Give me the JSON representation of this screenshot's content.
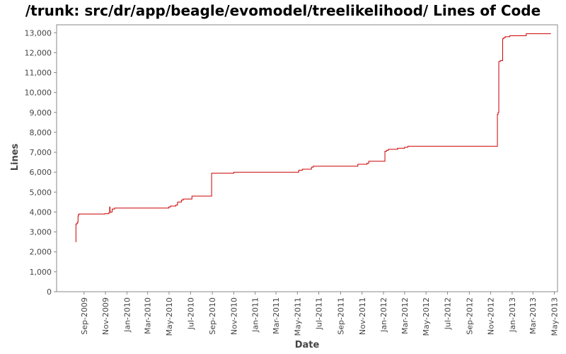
{
  "chart_data": {
    "type": "line",
    "title": "/trunk: src/dr/app/beagle/evomodel/treelikelihood/ Lines of Code",
    "xlabel": "Date",
    "ylabel": "Lines",
    "xlim": [
      "2009-06-15",
      "2013-05-10"
    ],
    "ylim": [
      0,
      13400
    ],
    "x_ticks": [
      "2009-09-01",
      "2009-11-01",
      "2010-01-01",
      "2010-03-01",
      "2010-05-01",
      "2010-07-01",
      "2010-09-01",
      "2010-11-01",
      "2011-01-01",
      "2011-03-01",
      "2011-05-01",
      "2011-07-01",
      "2011-09-01",
      "2011-11-01",
      "2012-01-01",
      "2012-03-01",
      "2012-05-01",
      "2012-07-01",
      "2012-09-01",
      "2012-11-01",
      "2013-01-01",
      "2013-03-01",
      "2013-05-01"
    ],
    "x_tick_labels": [
      "Sep-2009",
      "Nov-2009",
      "Jan-2010",
      "Mar-2010",
      "May-2010",
      "Jul-2010",
      "Sep-2010",
      "Nov-2010",
      "Jan-2011",
      "Mar-2011",
      "May-2011",
      "Jul-2011",
      "Sep-2011",
      "Nov-2011",
      "Jan-2012",
      "Mar-2012",
      "May-2012",
      "Jul-2012",
      "Sep-2012",
      "Nov-2012",
      "Jan-2013",
      "Mar-2013",
      "May-2013"
    ],
    "y_ticks": [
      0,
      1000,
      2000,
      3000,
      4000,
      5000,
      6000,
      7000,
      8000,
      9000,
      10000,
      11000,
      12000,
      13000
    ],
    "y_tick_labels": [
      "0",
      "1,000",
      "2,000",
      "3,000",
      "4,000",
      "5,000",
      "6,000",
      "7,000",
      "8,000",
      "9,000",
      "10,000",
      "11,000",
      "12,000",
      "13,000"
    ],
    "grid": false,
    "step": true,
    "color": "#cc0000",
    "series": [
      {
        "x": [
          "2009-08-08",
          "2009-08-09",
          "2009-08-12",
          "2009-08-14",
          "2009-08-15",
          "2009-08-16",
          "2009-08-17",
          "2009-10-30",
          "2009-11-10",
          "2009-11-13",
          "2009-11-14",
          "2009-11-20",
          "2009-11-27",
          "2010-04-30",
          "2010-05-05",
          "2010-05-20",
          "2010-05-25",
          "2010-06-05",
          "2010-06-10",
          "2010-07-05",
          "2010-08-30",
          "2010-11-01",
          "2011-05-05",
          "2011-05-15",
          "2011-06-10",
          "2011-06-15",
          "2011-10-20",
          "2011-11-15",
          "2011-11-20",
          "2012-01-05",
          "2012-01-10",
          "2012-01-15",
          "2012-02-10",
          "2012-03-01",
          "2012-03-10",
          "2012-11-20",
          "2012-11-22",
          "2012-11-24",
          "2012-11-28",
          "2012-12-05",
          "2012-12-08",
          "2012-12-12",
          "2012-12-25",
          "2013-02-10",
          "2013-04-05",
          "2013-04-20"
        ],
        "y": [
          2500,
          3400,
          3450,
          3500,
          3800,
          3850,
          3900,
          3920,
          3950,
          4250,
          4000,
          4150,
          4200,
          4250,
          4300,
          4350,
          4500,
          4600,
          4650,
          4800,
          5950,
          6000,
          6100,
          6150,
          6250,
          6300,
          6400,
          6450,
          6550,
          7050,
          7100,
          7150,
          7200,
          7250,
          7300,
          8900,
          9000,
          11550,
          11600,
          12700,
          12750,
          12800,
          12850,
          12950,
          12950,
          12980
        ]
      }
    ]
  }
}
